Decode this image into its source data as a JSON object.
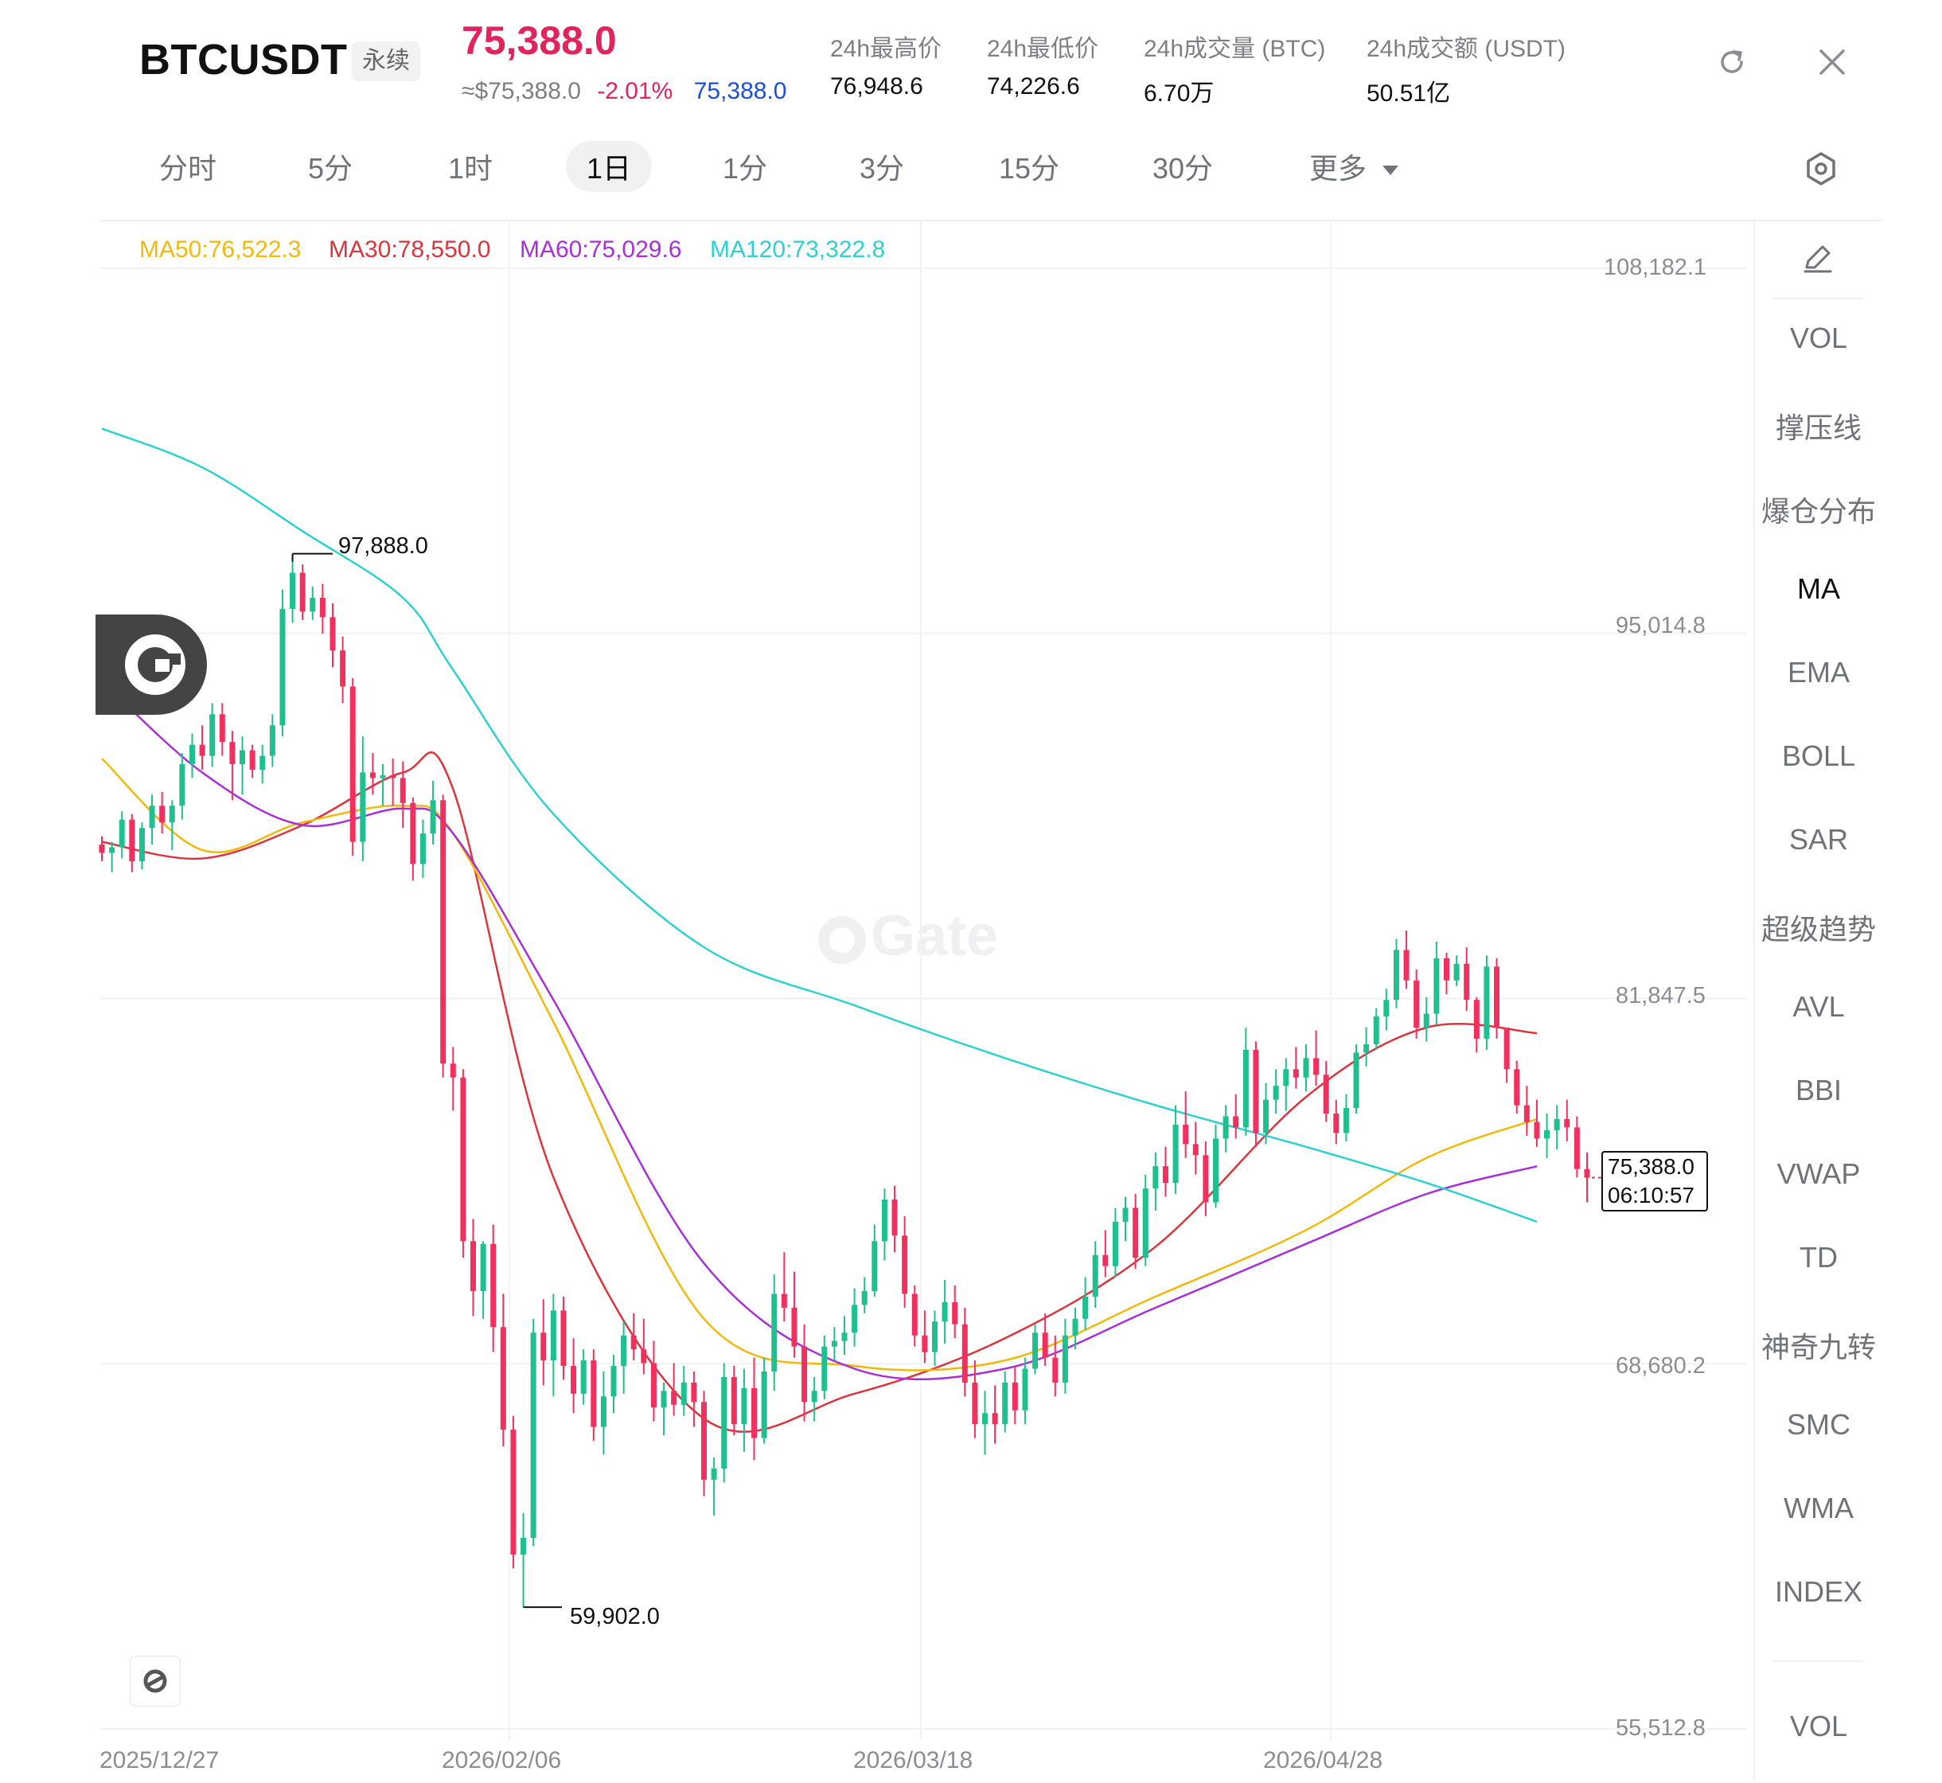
{
  "header": {
    "symbol": "BTCUSDT",
    "contract_badge": "永续",
    "last_price": "75,388.0",
    "approx_usd": "≈$75,388.0",
    "change_pct": "-2.01%",
    "mark_price": "75,388.0",
    "stats": [
      {
        "label": "24h最高价",
        "value": "76,948.6"
      },
      {
        "label": "24h最低价",
        "value": "74,226.6"
      },
      {
        "label": "24h成交量 (BTC)",
        "value": "6.70万"
      },
      {
        "label": "24h成交额 (USDT)",
        "value": "50.51亿"
      }
    ],
    "icons": {
      "refresh": "refresh-icon",
      "close": "close-icon"
    }
  },
  "timeframes": [
    "分时",
    "5分",
    "1时",
    "1日",
    "1分",
    "3分",
    "15分",
    "30分",
    "更多"
  ],
  "active_timeframe": "1日",
  "settings_icon": "hexagon-settings-icon",
  "sidebar": {
    "pencil_icon": "pencil-icon",
    "items": [
      "VOL",
      "撑压线",
      "爆仓分布",
      "MA",
      "EMA",
      "BOLL",
      "SAR",
      "超级趋势",
      "AVL",
      "BBI",
      "VWAP",
      "TD",
      "神奇九转",
      "SMC",
      "WMA",
      "INDEX"
    ],
    "active": "MA",
    "bottom_item": "VOL"
  },
  "watermark": "Gate",
  "colors": {
    "up": "#1fbf8f",
    "down": "#f0305f",
    "ma30": "#d9363e",
    "ma50": "#f0b90b",
    "ma60": "#a830d6",
    "ma120": "#2fd0d0"
  },
  "chart_data": {
    "type": "candlestick",
    "legend": [
      {
        "label": "MA50:76,522.3",
        "color": "#f0b90b"
      },
      {
        "label": "MA30:78,550.0",
        "color": "#d9363e"
      },
      {
        "label": "MA60:75,029.6",
        "color": "#a830d6"
      },
      {
        "label": "MA120:73,322.8",
        "color": "#2fd0d0"
      }
    ],
    "y_ticks": [
      "108,182.1",
      "95,014.8",
      "81,847.5",
      "68,680.2",
      "55,512.8"
    ],
    "y_tick_values": [
      108182.1,
      95014.8,
      81847.5,
      68680.2,
      55512.8
    ],
    "x_ticks": [
      "2025/12/27",
      "2026/02/06",
      "2026/03/18",
      "2026/04/28"
    ],
    "ylim": [
      55512.8,
      108182.1
    ],
    "annotations": {
      "high": {
        "label": "97,888.0",
        "value": 97888.0,
        "date": "2026/01/14"
      },
      "low": {
        "label": "59,902.0",
        "value": 59902.0,
        "date": "2026/02/06"
      }
    },
    "current_price": {
      "price": "75,388.0",
      "countdown": "06:10:57"
    },
    "ohlc": [
      [
        87400,
        87700,
        86800,
        87100
      ],
      [
        87100,
        87500,
        86400,
        87300
      ],
      [
        87300,
        88600,
        86900,
        88300
      ],
      [
        88300,
        88500,
        86400,
        86800
      ],
      [
        86800,
        88200,
        86500,
        88000
      ],
      [
        88000,
        89200,
        87400,
        88800
      ],
      [
        88800,
        89300,
        87800,
        88200
      ],
      [
        88200,
        89000,
        87200,
        88800
      ],
      [
        88800,
        90700,
        88300,
        90300
      ],
      [
        90300,
        91400,
        89800,
        91000
      ],
      [
        91000,
        91700,
        90100,
        90600
      ],
      [
        90600,
        92500,
        90200,
        92100
      ],
      [
        92100,
        92500,
        90600,
        91100
      ],
      [
        91100,
        91500,
        89000,
        90300
      ],
      [
        90300,
        91300,
        89200,
        90800
      ],
      [
        90800,
        91000,
        89800,
        90100
      ],
      [
        90100,
        91000,
        89600,
        90600
      ],
      [
        90600,
        92100,
        90200,
        91700
      ],
      [
        91700,
        96600,
        91300,
        95900
      ],
      [
        95900,
        97888,
        95400,
        97200
      ],
      [
        97200,
        97500,
        95500,
        95800
      ],
      [
        95800,
        96700,
        95500,
        96300
      ],
      [
        96300,
        96800,
        95000,
        95600
      ],
      [
        95600,
        96100,
        93800,
        94400
      ],
      [
        94400,
        94900,
        92500,
        93100
      ],
      [
        93100,
        93400,
        87000,
        87500
      ],
      [
        87500,
        91300,
        86800,
        90000
      ],
      [
        90000,
        90700,
        89200,
        89800
      ],
      [
        89800,
        90300,
        88800,
        89900
      ],
      [
        89900,
        90500,
        88800,
        89800
      ],
      [
        89800,
        90400,
        88000,
        88900
      ],
      [
        88900,
        89100,
        86100,
        86700
      ],
      [
        86700,
        88300,
        86200,
        87800
      ],
      [
        87800,
        89700,
        87400,
        89000
      ],
      [
        89000,
        89200,
        79000,
        79500
      ],
      [
        79500,
        80100,
        77800,
        79000
      ],
      [
        79000,
        79300,
        72500,
        73100
      ],
      [
        73100,
        73900,
        70400,
        71300
      ],
      [
        71300,
        73100,
        70300,
        73000
      ],
      [
        73000,
        73700,
        69100,
        70000
      ],
      [
        70000,
        71200,
        65700,
        66300
      ],
      [
        66300,
        66800,
        61300,
        61800
      ],
      [
        61800,
        63300,
        59902,
        62400
      ],
      [
        62400,
        70300,
        62100,
        69800
      ],
      [
        69800,
        71000,
        67900,
        68800
      ],
      [
        68800,
        71200,
        67500,
        70600
      ],
      [
        70600,
        71100,
        68100,
        68600
      ],
      [
        68600,
        69600,
        66900,
        67600
      ],
      [
        67600,
        69200,
        67200,
        68800
      ],
      [
        68800,
        69200,
        65900,
        66400
      ],
      [
        66400,
        68400,
        65400,
        67500
      ],
      [
        67500,
        69000,
        66900,
        68600
      ],
      [
        68600,
        70200,
        67600,
        69700
      ],
      [
        69700,
        70500,
        68800,
        69200
      ],
      [
        69200,
        70300,
        68300,
        68700
      ],
      [
        68700,
        69500,
        66600,
        67100
      ],
      [
        67100,
        68000,
        66100,
        67700
      ],
      [
        67700,
        68700,
        66800,
        67200
      ],
      [
        67200,
        68600,
        66800,
        68000
      ],
      [
        68000,
        68400,
        66400,
        67300
      ],
      [
        67300,
        67700,
        63900,
        64500
      ],
      [
        64500,
        65300,
        63200,
        64900
      ],
      [
        64900,
        68700,
        64400,
        68200
      ],
      [
        68200,
        68600,
        66100,
        66500
      ],
      [
        66500,
        68500,
        65500,
        67800
      ],
      [
        67800,
        68900,
        65200,
        66000
      ],
      [
        66000,
        68900,
        65800,
        68400
      ],
      [
        68400,
        71900,
        67700,
        71200
      ],
      [
        71200,
        72700,
        70200,
        70700
      ],
      [
        70700,
        72000,
        68900,
        69300
      ],
      [
        69300,
        70100,
        66600,
        67300
      ],
      [
        67300,
        68200,
        66600,
        67700
      ],
      [
        67700,
        69700,
        67400,
        69300
      ],
      [
        69300,
        70000,
        68800,
        69500
      ],
      [
        69500,
        70400,
        69000,
        69800
      ],
      [
        69800,
        71400,
        69300,
        70800
      ],
      [
        70800,
        71800,
        70500,
        71300
      ],
      [
        71300,
        73700,
        71100,
        73100
      ],
      [
        73100,
        75000,
        72400,
        74600
      ],
      [
        74600,
        75100,
        72700,
        73300
      ],
      [
        73300,
        74000,
        70700,
        71200
      ],
      [
        71200,
        71500,
        69300,
        69700
      ],
      [
        69700,
        70600,
        68700,
        69100
      ],
      [
        69100,
        70600,
        68600,
        70200
      ],
      [
        70200,
        71700,
        69400,
        70900
      ],
      [
        70900,
        71500,
        69600,
        70100
      ],
      [
        70100,
        70700,
        67500,
        68000
      ],
      [
        68000,
        68800,
        66000,
        66500
      ],
      [
        66500,
        67700,
        65400,
        66900
      ],
      [
        66900,
        67900,
        65800,
        66500
      ],
      [
        66500,
        68400,
        66200,
        68000
      ],
      [
        68000,
        68600,
        66500,
        67000
      ],
      [
        67000,
        68900,
        66500,
        68500
      ],
      [
        68500,
        70100,
        68300,
        69800
      ],
      [
        69800,
        70500,
        68600,
        68900
      ],
      [
        68900,
        69700,
        67500,
        68000
      ],
      [
        68000,
        70300,
        67600,
        69700
      ],
      [
        69700,
        70700,
        69200,
        70300
      ],
      [
        70300,
        71800,
        69900,
        71100
      ],
      [
        71100,
        73100,
        70700,
        72600
      ],
      [
        72600,
        73500,
        71800,
        72200
      ],
      [
        72200,
        74300,
        71800,
        73800
      ],
      [
        73800,
        74700,
        73100,
        74300
      ],
      [
        74300,
        74800,
        72100,
        72500
      ],
      [
        72500,
        75500,
        72200,
        75000
      ],
      [
        75000,
        76300,
        74200,
        75800
      ],
      [
        75800,
        76500,
        74700,
        75200
      ],
      [
        75200,
        78000,
        74800,
        77300
      ],
      [
        77300,
        78500,
        76100,
        76600
      ],
      [
        76600,
        77400,
        75500,
        76200
      ],
      [
        76200,
        76700,
        74000,
        74500
      ],
      [
        74500,
        77300,
        74300,
        76800
      ],
      [
        76800,
        78000,
        76300,
        77600
      ],
      [
        77600,
        78400,
        76800,
        77200
      ],
      [
        77200,
        80800,
        76900,
        80000
      ],
      [
        80000,
        80300,
        76500,
        77000
      ],
      [
        77000,
        78800,
        76600,
        78200
      ],
      [
        78200,
        79300,
        77700,
        78700
      ],
      [
        78700,
        79700,
        77800,
        79300
      ],
      [
        79300,
        80100,
        78600,
        79000
      ],
      [
        79000,
        80200,
        78500,
        79700
      ],
      [
        79700,
        80700,
        78700,
        79100
      ],
      [
        79100,
        79600,
        77400,
        77700
      ],
      [
        77700,
        78200,
        76600,
        77000
      ],
      [
        77000,
        78400,
        76700,
        77900
      ],
      [
        77900,
        80200,
        77700,
        79900
      ],
      [
        79900,
        80800,
        79400,
        80200
      ],
      [
        80200,
        81500,
        80000,
        81200
      ],
      [
        81200,
        82200,
        80700,
        81800
      ],
      [
        81800,
        84000,
        81500,
        83600
      ],
      [
        83600,
        84300,
        82200,
        82500
      ],
      [
        82500,
        82900,
        80400,
        80800
      ],
      [
        80800,
        81900,
        80300,
        81300
      ],
      [
        81300,
        83900,
        80900,
        83300
      ],
      [
        83300,
        83500,
        82000,
        82500
      ],
      [
        82500,
        83400,
        82300,
        83100
      ],
      [
        83100,
        83700,
        81400,
        81800
      ],
      [
        81800,
        81900,
        79900,
        80400
      ],
      [
        80400,
        83400,
        80000,
        83000
      ],
      [
        83000,
        83300,
        80400,
        80800
      ],
      [
        80800,
        80800,
        78800,
        79300
      ],
      [
        79300,
        79600,
        77700,
        78000
      ],
      [
        78000,
        78700,
        76900,
        77400
      ],
      [
        77400,
        78200,
        76500,
        76800
      ],
      [
        76800,
        77700,
        76100,
        77100
      ],
      [
        77100,
        78000,
        76400,
        77500
      ],
      [
        77500,
        78200,
        76700,
        77200
      ],
      [
        77200,
        77600,
        75400,
        75700
      ],
      [
        75700,
        76300,
        74500,
        75388
      ]
    ],
    "ma_samples": [
      {
        "name": "MA30",
        "key": "ma30",
        "x": [
          0,
          10,
          20,
          30,
          35,
          45,
          60,
          75,
          90,
          105,
          120,
          132,
          143
        ],
        "y": [
          87500,
          86900,
          88100,
          90000,
          89400,
          75400,
          66700,
          67600,
          69600,
          72900,
          78300,
          80800,
          80600
        ]
      },
      {
        "name": "MA50",
        "key": "ma50",
        "x": [
          0,
          10,
          20,
          30,
          35,
          45,
          60,
          75,
          90,
          105,
          120,
          132,
          143
        ],
        "y": [
          90500,
          87200,
          88200,
          88800,
          87800,
          81000,
          70300,
          68600,
          68800,
          71100,
          73500,
          76100,
          77500
        ]
      },
      {
        "name": "MA60",
        "key": "ma60",
        "x": [
          0,
          10,
          20,
          30,
          35,
          45,
          60,
          75,
          90,
          105,
          120,
          132,
          143
        ],
        "y": [
          93300,
          90000,
          88100,
          88700,
          87800,
          81800,
          72300,
          68500,
          68500,
          70700,
          73000,
          74800,
          75800
        ]
      },
      {
        "name": "MA120",
        "key": "ma120",
        "x": [
          0,
          10,
          20,
          30,
          35,
          45,
          60,
          75,
          90,
          105,
          120,
          132,
          143
        ],
        "y": [
          102400,
          101000,
          98700,
          96300,
          93700,
          88500,
          83700,
          81600,
          79700,
          78000,
          76500,
          75200,
          73800
        ]
      }
    ]
  }
}
